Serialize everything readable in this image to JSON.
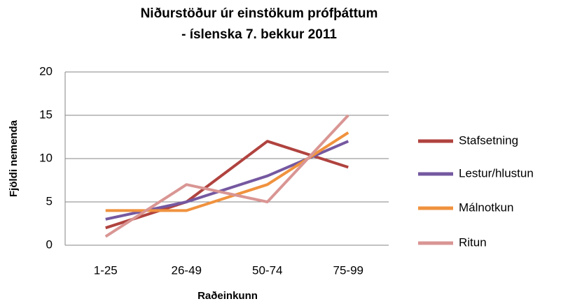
{
  "chart_data": {
    "type": "line",
    "title": [
      "Niðurstöður úr einstökum prófþáttum",
      "- íslenska 7. bekkur 2011"
    ],
    "x_label": "Raðeinkunn",
    "y_label": "Fjöldi nemenda",
    "categories": [
      "1-25",
      "26-49",
      "50-74",
      "75-99"
    ],
    "series": [
      {
        "name": "Stafsetning",
        "color": "#b0433f",
        "values": [
          2,
          5,
          12,
          9
        ]
      },
      {
        "name": "Lestur/hlustun",
        "color": "#7558a0",
        "values": [
          3,
          5,
          8,
          12
        ]
      },
      {
        "name": "Málnotkun",
        "color": "#f0923e",
        "values": [
          4,
          4,
          7,
          13
        ]
      },
      {
        "name": "Ritun",
        "color": "#d99694",
        "values": [
          1,
          7,
          5,
          15
        ]
      }
    ],
    "ylim": [
      0,
      20
    ],
    "yticks": [
      0,
      5,
      10,
      15,
      20
    ],
    "grid": true,
    "legend": "right"
  }
}
